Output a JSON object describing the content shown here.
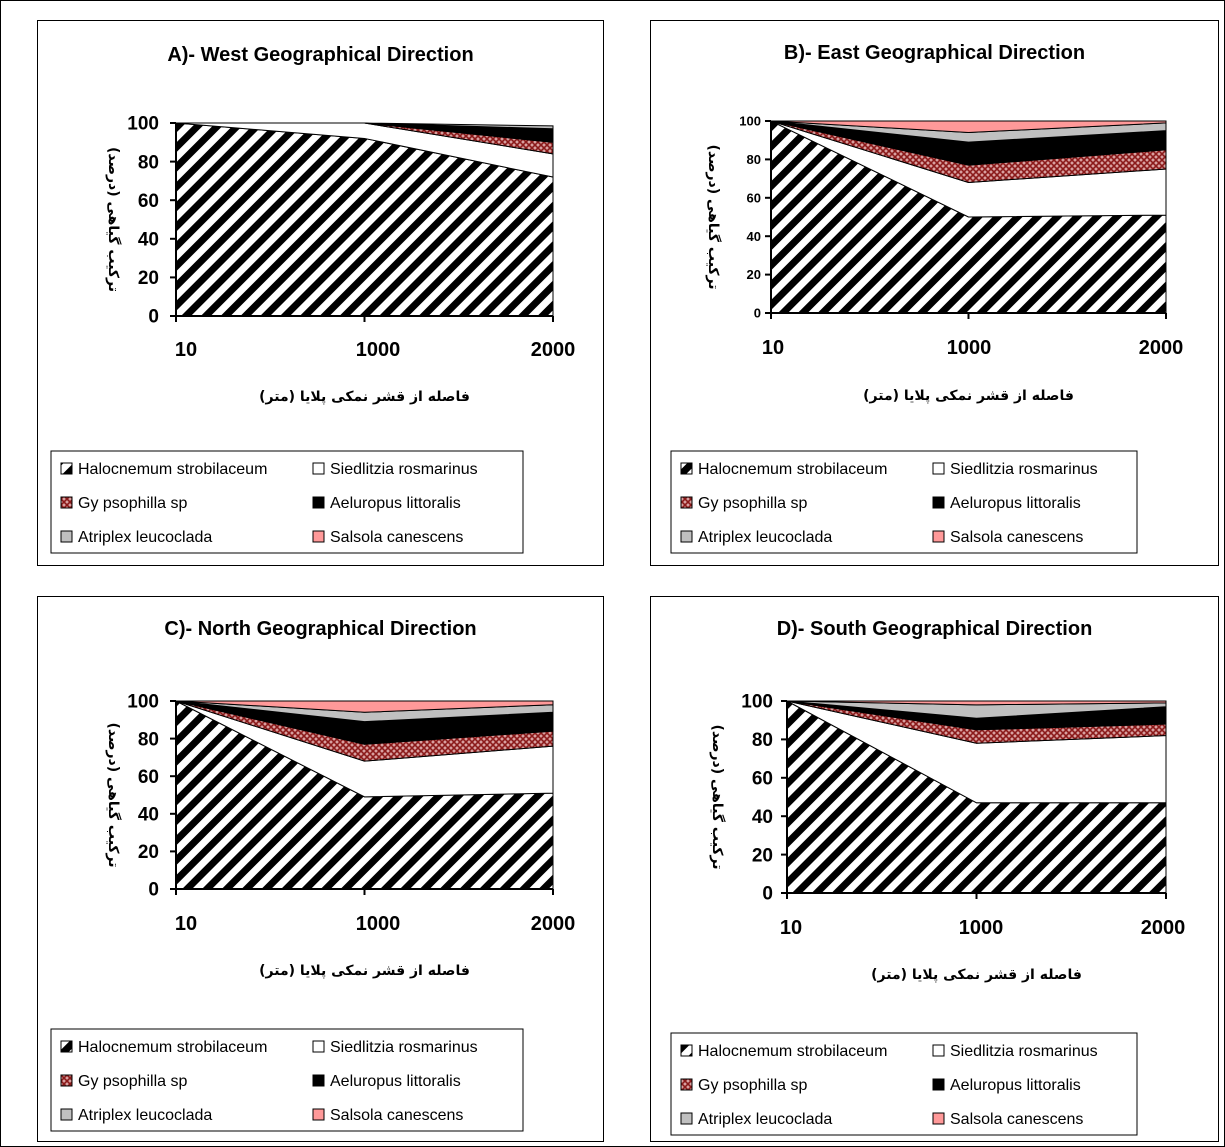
{
  "legend_entries": [
    {
      "name": "Halocnemum strobilaceum",
      "fill": "hatch"
    },
    {
      "name": "Siedlitzia rosmarinus",
      "fill": "#ffffff"
    },
    {
      "name": "Gy psophilla sp",
      "fill": "cross"
    },
    {
      "name": "Aeluropus littoralis",
      "fill": "#000000"
    },
    {
      "name": "Atriplex leucoclada",
      "fill": "#c0c0c0"
    },
    {
      "name": "Salsola canescens",
      "fill": "#ff9999"
    }
  ],
  "chart_data": [
    {
      "type": "area",
      "title": "A)- West Geographical Direction",
      "xlabel": "فاصله از قشر نمکی پلایا (متر)",
      "ylabel": "ترکیب گیاهی (درصد)",
      "categories": [
        "10",
        "1000",
        "2000"
      ],
      "yticks": [
        "0",
        "20",
        "40",
        "60",
        "80",
        "100"
      ],
      "ylim": [
        0,
        100
      ],
      "stacked": true,
      "series": [
        {
          "name": "Halocnemum strobilaceum",
          "values": [
            100,
            92,
            72
          ]
        },
        {
          "name": "Siedlitzia rosmarinus",
          "values": [
            0,
            8,
            12
          ]
        },
        {
          "name": "Gy psophilla sp",
          "values": [
            0,
            0,
            6
          ]
        },
        {
          "name": "Aeluropus littoralis",
          "values": [
            0,
            0,
            7
          ]
        },
        {
          "name": "Atriplex leucoclada",
          "values": [
            0,
            0,
            1.5
          ]
        },
        {
          "name": "Salsola canescens",
          "values": [
            0,
            0,
            0
          ]
        }
      ]
    },
    {
      "type": "area",
      "title": "B)- East Geographical Direction",
      "xlabel": "فاصله از قشر نمکی پلایا (متر)",
      "ylabel": "ترکیب گیاهی (درصد)",
      "categories": [
        "10",
        "1000",
        "2000"
      ],
      "yticks": [
        "0",
        "20",
        "40",
        "60",
        "80",
        "100"
      ],
      "ylim": [
        0,
        100
      ],
      "stacked": true,
      "series": [
        {
          "name": "Halocnemum strobilaceum",
          "values": [
            100,
            50,
            51
          ]
        },
        {
          "name": "Siedlitzia rosmarinus",
          "values": [
            0,
            18,
            24
          ]
        },
        {
          "name": "Gy psophilla sp",
          "values": [
            0,
            9,
            10
          ]
        },
        {
          "name": "Aeluropus littoralis",
          "values": [
            0,
            12,
            10
          ]
        },
        {
          "name": "Atriplex leucoclada",
          "values": [
            0,
            5,
            4
          ]
        },
        {
          "name": "Salsola canescens",
          "values": [
            0,
            6,
            1
          ]
        }
      ]
    },
    {
      "type": "area",
      "title": "C)- North Geographical Direction",
      "xlabel": "فاصله از قشر نمکی پلایا (متر)",
      "ylabel": "ترکیب گیاهی (درصد)",
      "categories": [
        "10",
        "1000",
        "2000"
      ],
      "yticks": [
        "0",
        "20",
        "40",
        "60",
        "80",
        "100"
      ],
      "ylim": [
        0,
        100
      ],
      "stacked": true,
      "series": [
        {
          "name": "Halocnemum strobilaceum",
          "values": [
            100,
            49,
            51
          ]
        },
        {
          "name": "Siedlitzia rosmarinus",
          "values": [
            0,
            19,
            25
          ]
        },
        {
          "name": "Gy psophilla sp",
          "values": [
            0,
            9,
            8
          ]
        },
        {
          "name": "Aeluropus littoralis",
          "values": [
            0,
            12,
            10
          ]
        },
        {
          "name": "Atriplex leucoclada",
          "values": [
            0,
            5,
            4
          ]
        },
        {
          "name": "Salsola canescens",
          "values": [
            0,
            6,
            2
          ]
        }
      ]
    },
    {
      "type": "area",
      "title": "D)- South Geographical Direction",
      "xlabel": "فاصله از قشر نمکی پلایا (متر)",
      "ylabel": "ترکیب گیاهی (درصد)",
      "categories": [
        "10",
        "1000",
        "2000"
      ],
      "yticks": [
        "0",
        "20",
        "40",
        "60",
        "80",
        "100"
      ],
      "ylim": [
        0,
        100
      ],
      "stacked": true,
      "series": [
        {
          "name": "Halocnemum strobilaceum",
          "values": [
            100,
            47,
            47
          ]
        },
        {
          "name": "Siedlitzia rosmarinus",
          "values": [
            0,
            31,
            35
          ]
        },
        {
          "name": "Gy psophilla sp",
          "values": [
            0,
            7,
            6
          ]
        },
        {
          "name": "Aeluropus littoralis",
          "values": [
            0,
            6,
            9
          ]
        },
        {
          "name": "Atriplex leucoclada",
          "values": [
            0,
            7,
            2
          ]
        },
        {
          "name": "Salsola canescens",
          "values": [
            0,
            2,
            1
          ]
        }
      ]
    }
  ]
}
